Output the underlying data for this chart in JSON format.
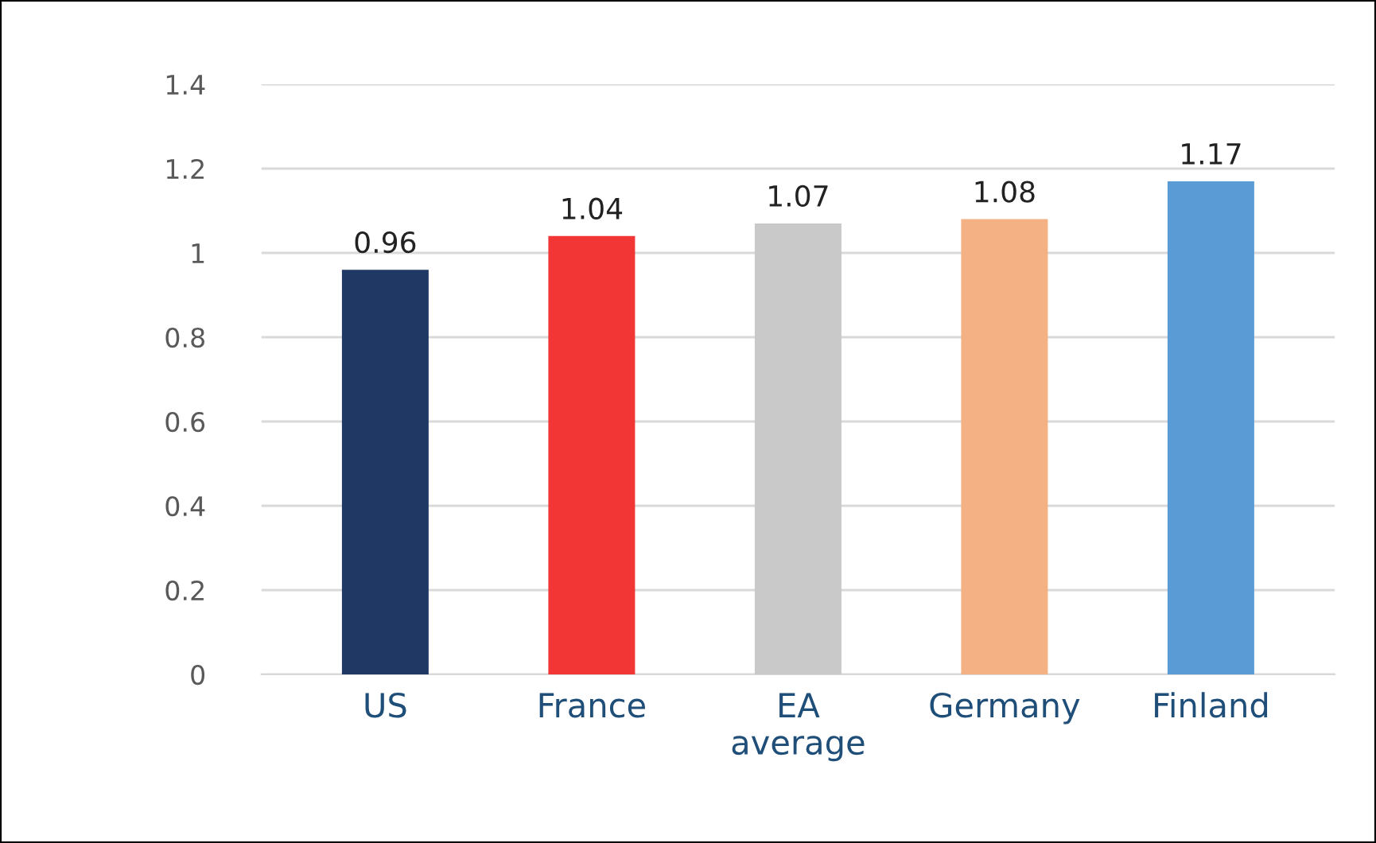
{
  "chart_data": {
    "type": "bar",
    "categories": [
      "US",
      "France",
      "EA\naverage",
      "Germany",
      "Finland"
    ],
    "values": [
      0.96,
      1.04,
      1.07,
      1.08,
      1.17
    ],
    "colors": [
      "#1f3864",
      "#f23535",
      "#c9c9c9",
      "#f4b183",
      "#5b9bd5"
    ],
    "ylim": [
      0,
      1.4
    ],
    "yticks": [
      0,
      0.2,
      0.4,
      0.6,
      0.8,
      1,
      1.2,
      1.4
    ],
    "grid": "y",
    "data_labels": true
  }
}
